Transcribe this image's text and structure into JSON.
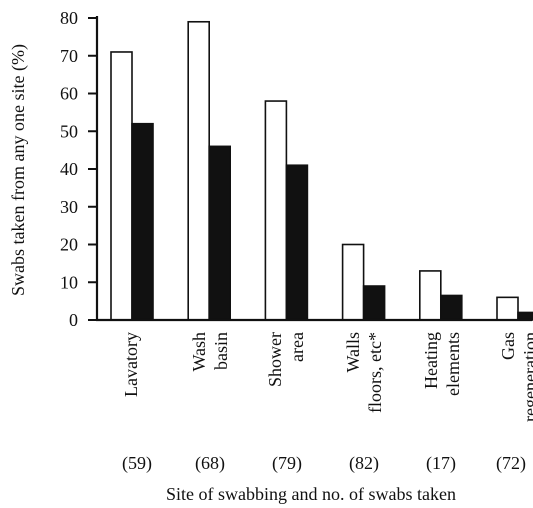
{
  "chart_data": {
    "type": "bar",
    "title": "",
    "xlabel": "Site of swabbing and no. of swabs taken",
    "ylabel": "Swabs taken from any one site (%)",
    "ylim": [
      0,
      80
    ],
    "yticks": [
      "0",
      "10",
      "20",
      "30",
      "40",
      "50",
      "60",
      "70",
      "80"
    ],
    "categories": [
      {
        "lines": [
          "Lavatory"
        ],
        "count": "(59)"
      },
      {
        "lines": [
          "Wash",
          "basin"
        ],
        "count": "(68)"
      },
      {
        "lines": [
          "Shower",
          "area"
        ],
        "count": "(79)"
      },
      {
        "lines": [
          "Walls",
          "floors, etc*"
        ],
        "count": "(82)"
      },
      {
        "lines": [
          "Heating",
          "elements"
        ],
        "count": "(17)"
      },
      {
        "lines": [
          "Gas",
          "regeneration"
        ],
        "count": "(72)"
      }
    ],
    "series": [
      {
        "fill": "#ffffff",
        "values": [
          71,
          79,
          58,
          20,
          13,
          6
        ]
      },
      {
        "fill": "#111111",
        "values": [
          52,
          46,
          41,
          9,
          6.5,
          2
        ]
      }
    ],
    "grid": false,
    "legend": "none"
  }
}
